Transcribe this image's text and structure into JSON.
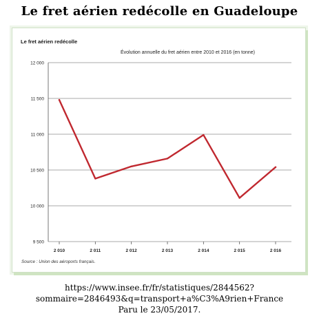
{
  "page_title": "Le fret aérien redécolle en Guadeloupe",
  "footer": {
    "url_line1": "https://www.insee.fr/fr/statistiques/2844562?",
    "url_line2": "sommaire=2846493&q=transport+a%C3%A9rien+France",
    "published": "Paru le 23/05/2017."
  },
  "colors": {
    "line": "#c0282f",
    "frame_border": "#cfe1c6",
    "grid": "#8c8c8c"
  },
  "chart_data": {
    "type": "line",
    "title": "Le fret aérien redécolle",
    "subtitle": "Évolution annuelle du fret aérien entre 2010 et 2016 (en tonne)",
    "source": "Source : Union des aéroports français.",
    "xlabel": "",
    "ylabel": "",
    "categories": [
      "2 010",
      "2 011",
      "2 012",
      "2 013",
      "2 014",
      "2 015",
      "2 016"
    ],
    "x": [
      2010,
      2011,
      2012,
      2013,
      2014,
      2015,
      2016
    ],
    "values": [
      11480,
      10380,
      10550,
      10660,
      10990,
      10110,
      10540
    ],
    "ylim": [
      9500,
      12000
    ],
    "yticks": [
      9500,
      10000,
      10500,
      11000,
      11500,
      12000
    ],
    "ytick_labels": [
      "9 500",
      "10 000",
      "10 500",
      "11 000",
      "11 500",
      "12 000"
    ],
    "grid": true,
    "legend": "none"
  }
}
